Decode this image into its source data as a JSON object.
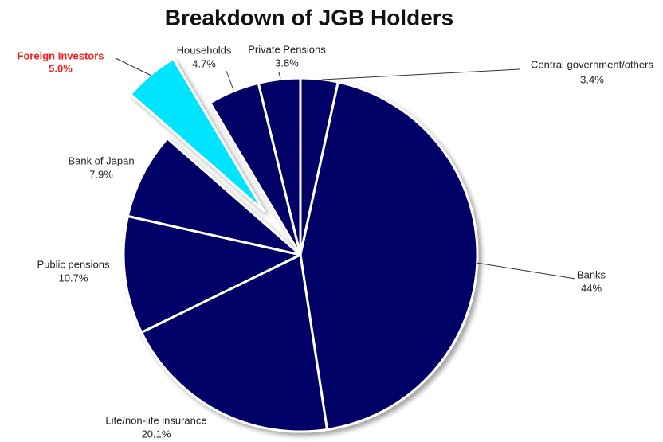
{
  "chart_data": {
    "type": "pie",
    "title": "Breakdown of JGB Holders",
    "categories": [
      "Central government/others",
      "Banks",
      "Life/non-life insurance",
      "Public pensions",
      "Bank of Japan",
      "Foreign Investors",
      "Households",
      "Private Pensions"
    ],
    "values": [
      3.4,
      44,
      20.1,
      10.7,
      7.9,
      5.0,
      4.7,
      3.8
    ],
    "value_labels": [
      "3.4%",
      "44%",
      "20.1%",
      "10.7%",
      "7.9%",
      "5.0%",
      "4.7%",
      "3.8%"
    ],
    "colors": [
      "#000066",
      "#000066",
      "#000066",
      "#000066",
      "#000066",
      "#00e5ff",
      "#000066",
      "#000066"
    ],
    "exploded": "Foreign Investors"
  }
}
